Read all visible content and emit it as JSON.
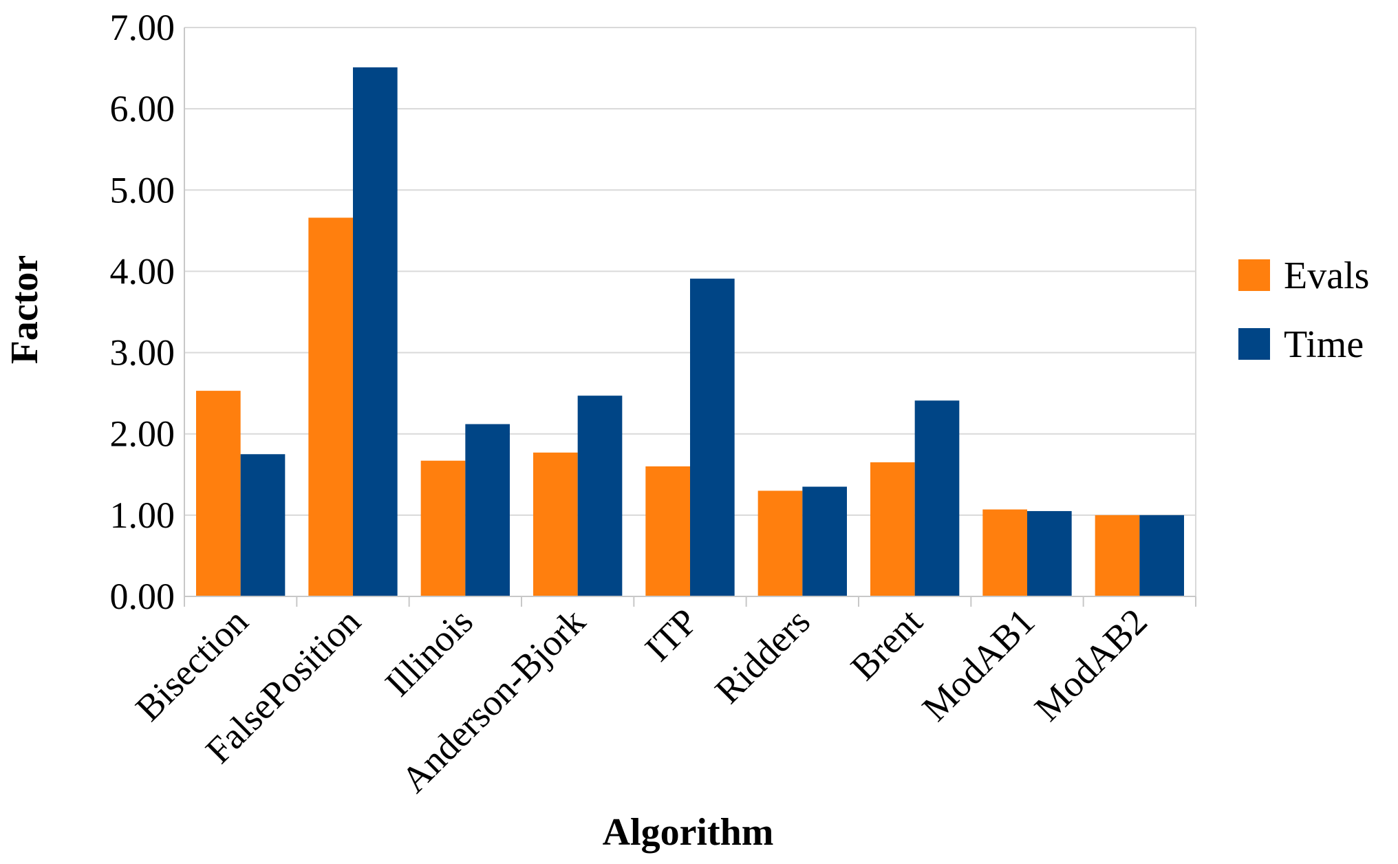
{
  "chart_data": {
    "type": "bar",
    "xlabel": "Algorithm",
    "ylabel": "Factor",
    "ylim": [
      0,
      7
    ],
    "yticks": [
      "0.00",
      "1.00",
      "2.00",
      "3.00",
      "4.00",
      "5.00",
      "6.00",
      "7.00"
    ],
    "grid": true,
    "legend_position": "right",
    "categories": [
      "Bisection",
      "FalsePosition",
      "Illinois",
      "Anderson-Bjork",
      "ITP",
      "Ridders",
      "Brent",
      "ModAB1",
      "ModAB2"
    ],
    "series": [
      {
        "name": "Evals",
        "color": "#ff7f0e",
        "values": [
          2.53,
          4.66,
          1.67,
          1.77,
          1.6,
          1.3,
          1.65,
          1.07,
          1.0
        ]
      },
      {
        "name": "Time",
        "color": "#004586",
        "values": [
          1.75,
          6.51,
          2.12,
          2.47,
          3.91,
          1.35,
          2.41,
          1.05,
          1.0
        ]
      }
    ]
  }
}
